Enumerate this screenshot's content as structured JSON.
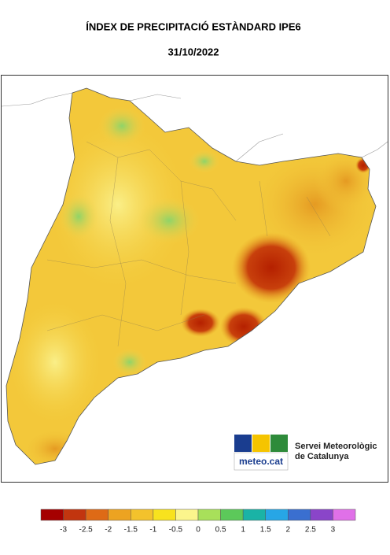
{
  "header": {
    "title": "ÍNDEX DE PRECIPITACIÓ ESTÀNDARD IPE6",
    "date": "31/10/2022"
  },
  "logo": {
    "brand": "meteo.cat",
    "line1": "Servei Meteorològic",
    "line2": "de Catalunya"
  },
  "legend": {
    "ticks": [
      -3,
      -2.5,
      -2,
      -1.5,
      -1,
      -0.5,
      0,
      0.5,
      1,
      1.5,
      2,
      2.5,
      3
    ],
    "colors": [
      "#a50000",
      "#c2350f",
      "#de6a16",
      "#eda321",
      "#f3c22c",
      "#f8e21e",
      "#fbf58c",
      "#a8e05a",
      "#5cc95a",
      "#1ab3a6",
      "#27a6e6",
      "#3a6fd0",
      "#8a45c9",
      "#e070e8"
    ]
  }
}
